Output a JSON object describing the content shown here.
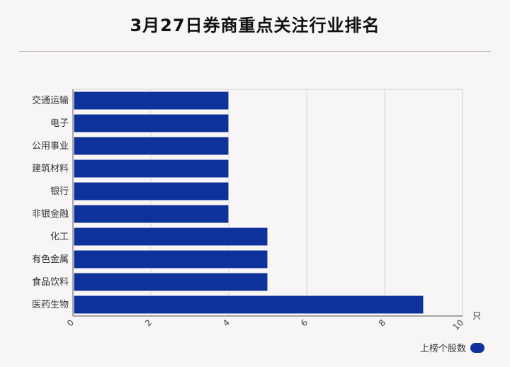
{
  "page": {
    "title": "3月27日券商重点关注行业排名"
  },
  "chart_data": {
    "type": "bar",
    "orientation": "horizontal",
    "categories": [
      "交通运输",
      "电子",
      "公用事业",
      "建筑材料",
      "银行",
      "非银金融",
      "化工",
      "有色金属",
      "食品饮料",
      "医药生物"
    ],
    "series": [
      {
        "name": "上榜个股数",
        "values": [
          4,
          4,
          4,
          4,
          4,
          4,
          5,
          5,
          5,
          9
        ]
      }
    ],
    "title": "3月27日券商重点关注行业排名",
    "xlabel": "只",
    "ylabel": "",
    "xlim": [
      0,
      10
    ],
    "xticks": [
      "0",
      "2",
      "4",
      "6",
      "8",
      "10"
    ],
    "grid": true,
    "legend_position": "bottom-right",
    "colors": {
      "bar": "#0e3299",
      "grid": "#d6d3d4",
      "axis": "#555555"
    }
  }
}
